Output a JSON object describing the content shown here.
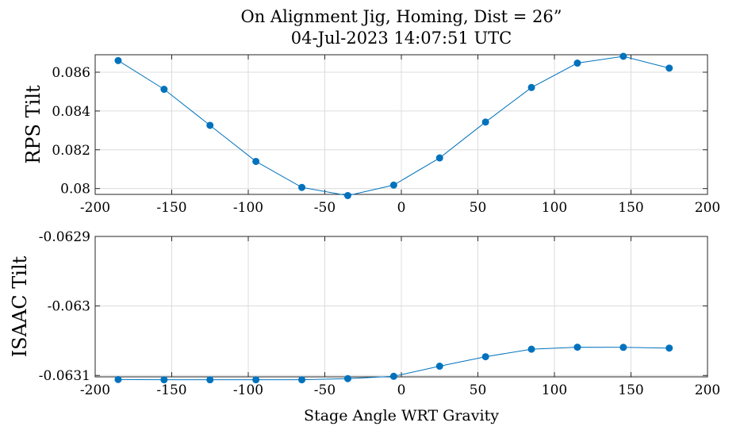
{
  "figure": {
    "title_line1": "On Alignment Jig, Homing, Dist = 26”",
    "title_line2": "04-Jul-2023 14:07:51 UTC",
    "series_color": "#0072BD",
    "grid_color": "#dcdcdc"
  },
  "chart_data": [
    {
      "type": "line",
      "ylabel": "RPS Tilt",
      "xlabel": "",
      "grid": true,
      "xlim": [
        -200,
        200
      ],
      "ylim": [
        0.0797,
        0.0869
      ],
      "xticks": [
        -200,
        -150,
        -100,
        -50,
        0,
        50,
        100,
        150,
        200
      ],
      "xtick_labels": [
        "-200",
        "-150",
        "-100",
        "-50",
        "0",
        "50",
        "100",
        "150",
        "200"
      ],
      "yticks": [
        0.08,
        0.082,
        0.084,
        0.086
      ],
      "ytick_labels": [
        "0.08",
        "0.082",
        "0.084",
        "0.086"
      ],
      "x": [
        -185,
        -155,
        -125,
        -95,
        -65,
        -35,
        -5,
        25,
        55,
        85,
        115,
        145,
        175
      ],
      "values": [
        0.0866,
        0.08512,
        0.08326,
        0.0814,
        0.08006,
        0.07964,
        0.08018,
        0.08158,
        0.08343,
        0.08521,
        0.08647,
        0.08682,
        0.08621
      ]
    },
    {
      "type": "line",
      "ylabel": "ISAAC Tilt",
      "xlabel": "Stage Angle WRT Gravity",
      "grid": true,
      "xlim": [
        -200,
        200
      ],
      "ylim": [
        -0.063102,
        -0.0629
      ],
      "xticks": [
        -200,
        -150,
        -100,
        -50,
        0,
        50,
        100,
        150,
        200
      ],
      "xtick_labels": [
        "-200",
        "-150",
        "-100",
        "-50",
        "0",
        "50",
        "100",
        "150",
        "200"
      ],
      "yticks": [
        -0.0631,
        -0.063,
        -0.0629
      ],
      "ytick_labels": [
        "-0.0631",
        "-0.063",
        "-0.0629"
      ],
      "x": [
        -185,
        -155,
        -125,
        -95,
        -65,
        -35,
        -5,
        25,
        55,
        85,
        115,
        145,
        175
      ],
      "values": [
        -0.0631058,
        -0.0631062,
        -0.0631062,
        -0.0631062,
        -0.0631062,
        -0.0631045,
        -0.0631012,
        -0.0630866,
        -0.063073,
        -0.0630622,
        -0.0630593,
        -0.0630595,
        -0.0630606
      ]
    }
  ]
}
